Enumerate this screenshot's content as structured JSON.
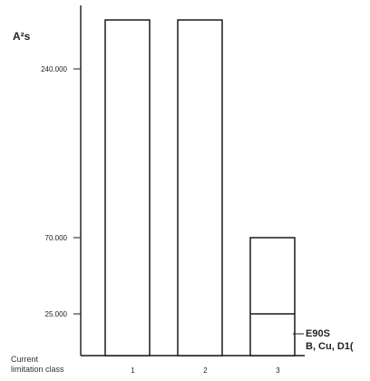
{
  "chart_data": {
    "type": "bar",
    "title": "",
    "y_unit_label": "A²s",
    "x_label_lines": [
      "Current",
      "limitation class"
    ],
    "categories": [
      "1",
      "2",
      "3"
    ],
    "values": [
      285000,
      285000,
      70000
    ],
    "y_ticks": [
      {
        "value": 25000,
        "label": "25.000"
      },
      {
        "value": 70000,
        "label": "70.000"
      },
      {
        "value": 240000,
        "label": "240.000"
      }
    ],
    "ylim": [
      0,
      298000
    ],
    "y_scale": "nonlinear",
    "grid": false,
    "legend": "none",
    "annotation": {
      "category": "3",
      "divider_value": 25000,
      "lines": [
        "E90S",
        "B, Cu, D1("
      ]
    }
  }
}
